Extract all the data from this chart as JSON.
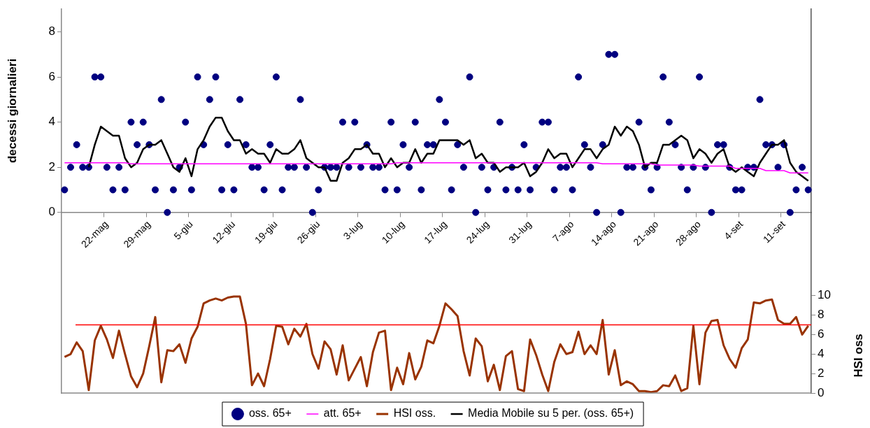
{
  "chart_data": {
    "type": "line",
    "ylabel": "decessi giornalieri",
    "y2label": "HSI oss",
    "categories": [
      null,
      null,
      null,
      null,
      null,
      null,
      null,
      "22-mag",
      null,
      null,
      null,
      null,
      null,
      null,
      "29-mag",
      null,
      null,
      null,
      null,
      null,
      null,
      "5-giu",
      null,
      null,
      null,
      null,
      null,
      null,
      "12-giu",
      null,
      null,
      null,
      null,
      null,
      null,
      "19-giu",
      null,
      null,
      null,
      null,
      null,
      null,
      "26-giu",
      null,
      null,
      null,
      null,
      null,
      null,
      "3-lug",
      null,
      null,
      null,
      null,
      null,
      null,
      "10-lug",
      null,
      null,
      null,
      null,
      null,
      null,
      "17-lug",
      null,
      null,
      null,
      null,
      null,
      null,
      "24-lug",
      null,
      null,
      null,
      null,
      null,
      null,
      "31-lug",
      null,
      null,
      null,
      null,
      null,
      null,
      "7-ago",
      null,
      null,
      null,
      null,
      null,
      null,
      "14-ago",
      null,
      null,
      null,
      null,
      null,
      null,
      "21-ago",
      null,
      null,
      null,
      null,
      null,
      null,
      "28-ago",
      null,
      null,
      null,
      null,
      null,
      null,
      "4-set",
      null,
      null,
      null,
      null,
      null,
      null,
      "11-set",
      null,
      null,
      null,
      null
    ],
    "ylim": [
      -8,
      9
    ],
    "yticks": [
      0,
      2,
      4,
      6,
      8
    ],
    "y2lim": [
      0,
      39.4
    ],
    "y2ticks": [
      0,
      2,
      4,
      6,
      8,
      10
    ],
    "grid": false,
    "legend": "bottom",
    "series": [
      {
        "name": "oss. 65+",
        "type": "scatter",
        "marker": "circle",
        "color": "#000080",
        "values": [
          1,
          2,
          3,
          2,
          2,
          6,
          6,
          2,
          1,
          2,
          1,
          4,
          3,
          4,
          3,
          1,
          5,
          0,
          1,
          2,
          4,
          1,
          6,
          3,
          5,
          6,
          1,
          3,
          1,
          5,
          3,
          2,
          2,
          1,
          3,
          6,
          1,
          2,
          2,
          5,
          2,
          0,
          1,
          2,
          2,
          2,
          4,
          2,
          4,
          2,
          3,
          2,
          2,
          1,
          4,
          1,
          3,
          2,
          4,
          1,
          3,
          3,
          5,
          4,
          1,
          3,
          2,
          6,
          0,
          2,
          1,
          2,
          4,
          1,
          2,
          1,
          3,
          1,
          2,
          4,
          4,
          1,
          2,
          2,
          1,
          6,
          3,
          2,
          0,
          3,
          7,
          7,
          0,
          2,
          2,
          4,
          2,
          1,
          2,
          6,
          4,
          3,
          2,
          1,
          2,
          6,
          2,
          0,
          3,
          3,
          2,
          1,
          1,
          2,
          2,
          5,
          3,
          3,
          2,
          3,
          0,
          1,
          2,
          1
        ]
      },
      {
        "name": "att. 65+",
        "type": "line",
        "color": "#ff00ff",
        "values": [
          2.2,
          2.2,
          2.2,
          2.2,
          2.2,
          2.2,
          2.2,
          2.2,
          2.2,
          2.2,
          2.2,
          2.15,
          2.15,
          2.15,
          2.15,
          2.15,
          2.15,
          2.15,
          2.15,
          2.15,
          2.15,
          2.15,
          2.15,
          2.15,
          2.15,
          2.15,
          2.15,
          2.15,
          2.15,
          2.15,
          2.15,
          2.15,
          2.15,
          2.15,
          2.15,
          2.15,
          2.15,
          2.15,
          2.15,
          2.15,
          2.15,
          2.15,
          2.15,
          2.15,
          2.15,
          2.15,
          2.15,
          2.15,
          2.15,
          2.15,
          2.15,
          2.15,
          2.15,
          2.15,
          2.15,
          2.2,
          2.2,
          2.2,
          2.2,
          2.2,
          2.2,
          2.2,
          2.2,
          2.2,
          2.2,
          2.2,
          2.2,
          2.2,
          2.2,
          2.2,
          2.2,
          2.2,
          2.2,
          2.2,
          2.2,
          2.2,
          2.2,
          2.2,
          2.2,
          2.2,
          2.2,
          2.2,
          2.2,
          2.2,
          2.2,
          2.2,
          2.2,
          2.2,
          2.2,
          2.15,
          2.15,
          2.15,
          2.15,
          2.15,
          2.15,
          2.15,
          2.15,
          2.15,
          2.1,
          2.1,
          2.1,
          2.1,
          2.1,
          2.1,
          2.1,
          2.05,
          2.05,
          2.05,
          2.05,
          2.05,
          2.05,
          1.95,
          1.95,
          1.95,
          1.95,
          1.95,
          1.85,
          1.85,
          1.85,
          1.85,
          1.75,
          1.75,
          1.75,
          1.75
        ]
      },
      {
        "name": "HSI oss.",
        "type": "line",
        "axis": "y2",
        "color": "#993300",
        "values": [
          3.7,
          4.0,
          5.2,
          4.3,
          0.3,
          5.4,
          6.9,
          5.5,
          3.6,
          6.4,
          4.0,
          1.7,
          0.6,
          2.0,
          4.8,
          7.8,
          1.1,
          4.4,
          4.3,
          5.0,
          3.1,
          5.6,
          6.8,
          9.2,
          9.5,
          9.7,
          9.5,
          9.8,
          9.9,
          9.9,
          7.1,
          0.8,
          2.0,
          0.7,
          3.5,
          6.9,
          6.8,
          5.0,
          6.6,
          5.8,
          7.1,
          4.0,
          2.5,
          5.3,
          4.5,
          1.9,
          4.9,
          1.3,
          2.5,
          3.7,
          0.7,
          4.2,
          6.2,
          6.4,
          0.3,
          2.6,
          0.9,
          4.1,
          1.4,
          2.7,
          5.4,
          5.1,
          6.9,
          9.2,
          8.6,
          7.9,
          4.3,
          1.8,
          5.6,
          4.8,
          1.2,
          2.9,
          0.3,
          3.8,
          4.3,
          0.4,
          0.2,
          5.5,
          3.9,
          1.9,
          0.2,
          3.2,
          5.0,
          4.0,
          4.2,
          6.3,
          4.0,
          4.9,
          4.0,
          7.5,
          1.9,
          4.4,
          0.8,
          1.2,
          0.9,
          0.2,
          0.2,
          0.1,
          0.2,
          0.8,
          0.7,
          1.8,
          0.2,
          0.5,
          6.9,
          0.9,
          6.2,
          7.4,
          7.5,
          4.9,
          3.5,
          2.6,
          4.6,
          5.5,
          9.3,
          9.2,
          9.5,
          9.6,
          7.5,
          7.1,
          7.1,
          7.8,
          6.0,
          6.9
        ]
      },
      {
        "name": "Media Mobile su 5 per. (oss. 65+)",
        "type": "line",
        "color": "#000000",
        "values": [
          null,
          null,
          null,
          null,
          2.0,
          3.0,
          3.8,
          3.6,
          3.4,
          3.4,
          2.4,
          2.0,
          2.2,
          2.8,
          3.0,
          3.0,
          3.2,
          2.6,
          2.0,
          1.8,
          2.4,
          1.6,
          2.8,
          3.2,
          3.8,
          4.2,
          4.2,
          3.6,
          3.2,
          3.2,
          2.6,
          2.8,
          2.6,
          2.6,
          2.2,
          2.8,
          2.6,
          2.6,
          2.8,
          3.2,
          2.4,
          2.2,
          2.0,
          2.0,
          1.4,
          1.4,
          2.2,
          2.4,
          2.8,
          2.8,
          3.0,
          2.6,
          2.6,
          2.0,
          2.4,
          2.0,
          2.2,
          2.2,
          2.8,
          2.2,
          2.6,
          2.6,
          3.2,
          3.2,
          3.2,
          3.2,
          3.0,
          3.2,
          2.4,
          2.6,
          2.2,
          2.2,
          1.8,
          2.0,
          2.0,
          2.0,
          2.2,
          1.6,
          1.8,
          2.2,
          2.8,
          2.4,
          2.6,
          2.6,
          2.0,
          2.4,
          2.8,
          2.8,
          2.4,
          2.8,
          3.0,
          3.8,
          3.4,
          3.8,
          3.6,
          3.0,
          2.0,
          2.2,
          2.2,
          3.0,
          3.0,
          3.2,
          3.4,
          3.2,
          2.4,
          2.8,
          2.6,
          2.2,
          2.6,
          2.8,
          2.0,
          1.8,
          2.0,
          1.8,
          1.6,
          2.2,
          2.6,
          3.0,
          3.0,
          3.2,
          2.2,
          1.8,
          1.6,
          1.4
        ]
      }
    ],
    "ref_lines": [
      {
        "axis": "y2",
        "value": 7,
        "color": "#ff0000"
      }
    ]
  }
}
